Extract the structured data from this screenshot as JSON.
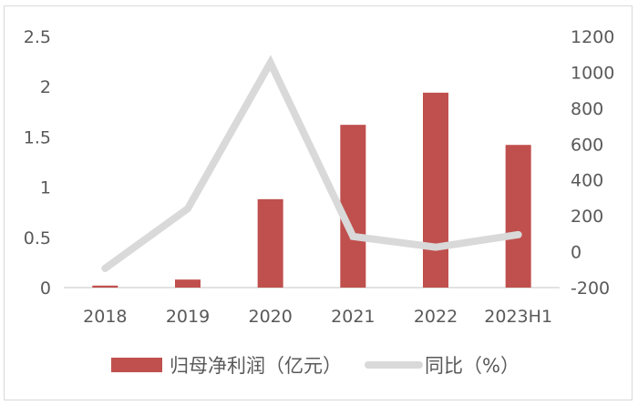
{
  "chart_data": {
    "type": "bar+line",
    "title": "",
    "categories": [
      "2018",
      "2019",
      "2020",
      "2021",
      "2022",
      "2023H1"
    ],
    "series": [
      {
        "name": "归母净利润（亿元）",
        "type": "bar",
        "axis": "left",
        "color": "#c0504d",
        "values": [
          0.02,
          0.08,
          0.88,
          1.62,
          1.94,
          1.42
        ]
      },
      {
        "name": "同比（%）",
        "type": "line",
        "axis": "right",
        "color": "#d9d9d9",
        "values": [
          -93,
          240,
          1053,
          85,
          25,
          95
        ]
      }
    ],
    "left_axis": {
      "ylim": [
        0,
        2.5
      ],
      "ticks": [
        "0",
        "0.5",
        "1",
        "1.5",
        "2",
        "2.5"
      ]
    },
    "right_axis": {
      "ylim": [
        -200,
        1200
      ],
      "ticks": [
        "-200",
        "0",
        "200",
        "400",
        "600",
        "800",
        "1000",
        "1200"
      ]
    },
    "xlabel": "",
    "ylabel": "",
    "grid": false,
    "legend_position": "bottom"
  },
  "legend": {
    "bar_label": "归母净利润（亿元）",
    "line_label": "同比（%）"
  }
}
